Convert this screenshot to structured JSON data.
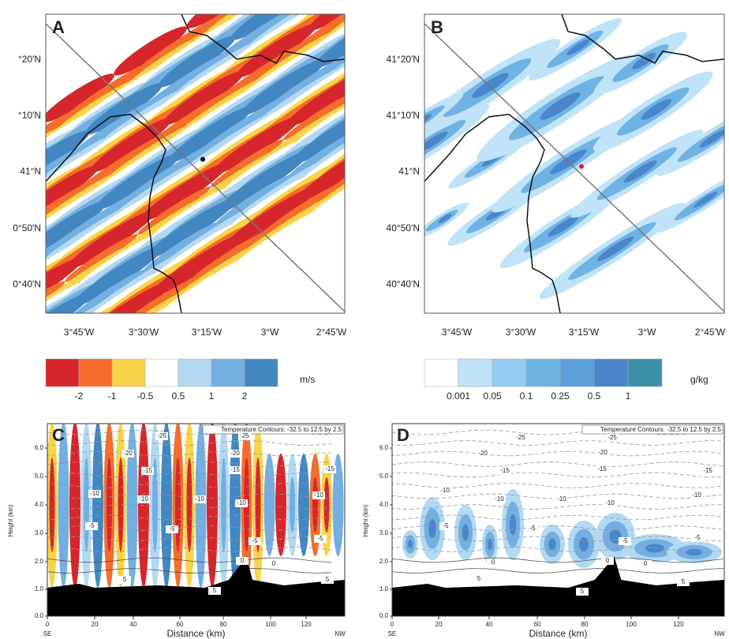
{
  "panels": [
    {
      "label": "A",
      "lat_labels": [
        "°20'N",
        "°10'N",
        "41°N",
        "0°50'N",
        "0°40'N"
      ],
      "lon_labels": [
        "3°45'W",
        "3°30'W",
        "3°15'W",
        "3°W",
        "2°45'W"
      ]
    },
    {
      "label": "B",
      "lat_labels": [
        "41°20'N",
        "41°10'N",
        "41°N",
        "40°50'N",
        "40°40'N"
      ],
      "lon_labels": [
        "3°45'W",
        "3°30'W",
        "3°15'W",
        "3°W",
        "2°45'W"
      ]
    }
  ],
  "colorbars": [
    {
      "labels": [
        "-2",
        "-1",
        "-0.5",
        "0.5",
        "1",
        "2"
      ],
      "unit": "m/s"
    },
    {
      "labels": [
        "0.001",
        "0.05",
        "0.1",
        "0.25",
        "0.5",
        "1"
      ],
      "unit": "g/kg"
    }
  ],
  "sections": [
    {
      "label": "C",
      "title": "Temperature Contours: -32.5 to 12.5 by 2.5",
      "y_label": "Height (km)",
      "x_label": "Distance (km)",
      "yticks": [
        "0.0",
        "1.0",
        "2.0",
        "3.0",
        "4.0",
        "5.0",
        "6.0"
      ],
      "xticks": [
        "0",
        "20",
        "40",
        "60",
        "80",
        "100",
        "120"
      ],
      "left_end": "SE",
      "right_end": "NW",
      "contour_labels": [
        "-25",
        "-25",
        "-20",
        "-20",
        "-15",
        "-15",
        "-15",
        "-10",
        "-10",
        "-10",
        "-10",
        "-10",
        "-5",
        "-5",
        "-5",
        "-5",
        "0",
        "0",
        "5",
        "5",
        "5"
      ]
    },
    {
      "label": "D",
      "title": "Temperature Contours: -32.5 to 12.5 by 2.5",
      "y_label": "Height (km)",
      "x_label": "Distance (km)",
      "yticks": [
        "0.0",
        "1.0",
        "2.0",
        "3.0",
        "4.0",
        "5.0",
        "6.0"
      ],
      "xticks": [
        "0",
        "20",
        "40",
        "60",
        "80",
        "100",
        "120"
      ],
      "left_end": "SE",
      "right_end": "NW",
      "contour_labels": [
        "-25",
        "-25",
        "-20",
        "-20",
        "-15",
        "-15",
        "-15",
        "-10",
        "-10",
        "-10",
        "-10",
        "-10",
        "-5",
        "-5",
        "-5",
        "-5",
        "0",
        "0",
        "0",
        "5",
        "5",
        "5"
      ]
    }
  ]
}
